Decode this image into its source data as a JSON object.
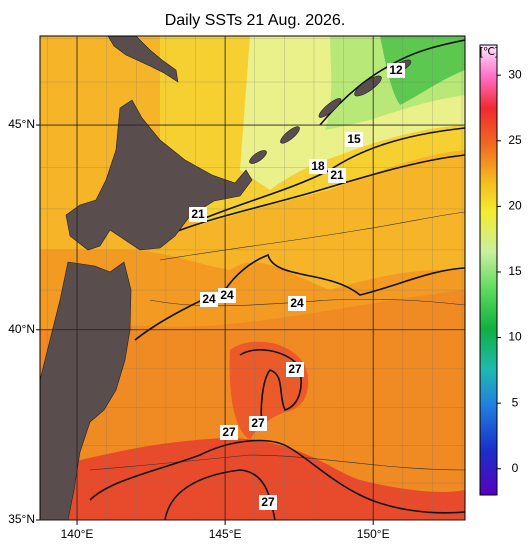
{
  "title": "Daily SSTs 21 Aug. 2026.",
  "map": {
    "lonlim": [
      138.75,
      153.1
    ],
    "latlim": [
      35,
      47.05
    ],
    "lon_ticks": [
      {
        "value": 140,
        "label": "140°E"
      },
      {
        "value": 145,
        "label": "145°E"
      },
      {
        "value": 150,
        "label": "150°E"
      }
    ],
    "lat_ticks": [
      {
        "value": 35,
        "label": "35°N"
      },
      {
        "value": 40,
        "label": "40°N"
      },
      {
        "value": 45,
        "label": "45°N"
      }
    ],
    "contour_labels": [
      12,
      15,
      18,
      21,
      21,
      24,
      24,
      24,
      27,
      27,
      27,
      27
    ]
  },
  "colorbar": {
    "label": "[℃]",
    "range": [
      -2,
      32.3
    ],
    "ticks": [
      0,
      5,
      10,
      15,
      20,
      25,
      30
    ]
  }
}
